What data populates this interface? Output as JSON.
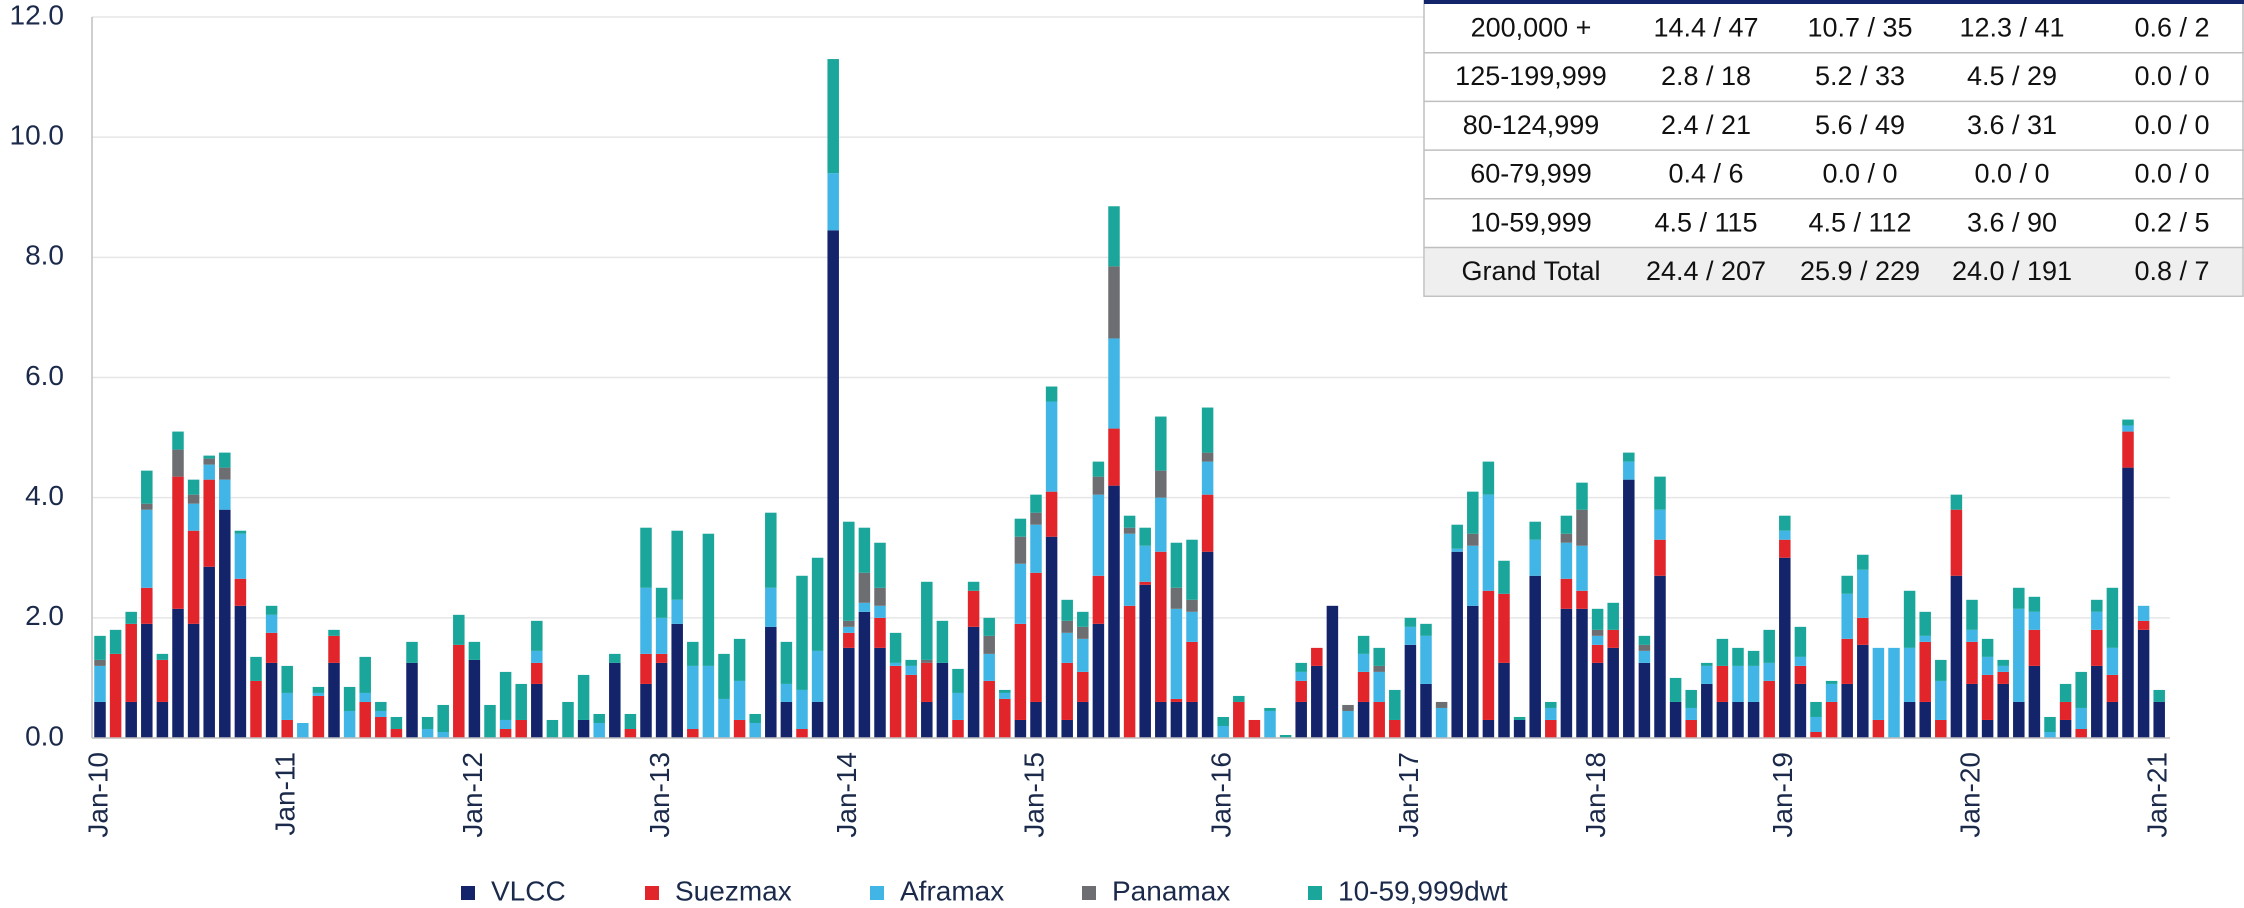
{
  "chart_data": {
    "type": "stacked_bar",
    "categories": [
      "Jan-10",
      null,
      null,
      null,
      null,
      null,
      null,
      null,
      null,
      null,
      null,
      null,
      "Jan-11",
      null,
      null,
      null,
      null,
      null,
      null,
      null,
      null,
      null,
      null,
      null,
      "Jan-12",
      null,
      null,
      null,
      null,
      null,
      null,
      null,
      null,
      null,
      null,
      null,
      "Jan-13",
      null,
      null,
      null,
      null,
      null,
      null,
      null,
      null,
      null,
      null,
      null,
      "Jan-14",
      null,
      null,
      null,
      null,
      null,
      null,
      null,
      null,
      null,
      null,
      null,
      "Jan-15",
      null,
      null,
      null,
      null,
      null,
      null,
      null,
      null,
      null,
      null,
      null,
      "Jan-16",
      null,
      null,
      null,
      null,
      null,
      null,
      null,
      null,
      null,
      null,
      null,
      "Jan-17",
      null,
      null,
      null,
      null,
      null,
      null,
      null,
      null,
      null,
      null,
      null,
      "Jan-18",
      null,
      null,
      null,
      null,
      null,
      null,
      null,
      null,
      null,
      null,
      null,
      "Jan-19",
      null,
      null,
      null,
      null,
      null,
      null,
      null,
      null,
      null,
      null,
      null,
      "Jan-20",
      null,
      null,
      null,
      null,
      null,
      null,
      null,
      null,
      null,
      null,
      null,
      "Jan-21"
    ],
    "series": [
      {
        "name": "VLCC",
        "color": "#14246b",
        "values": [
          0.6,
          0,
          0.6,
          1.9,
          0.6,
          2.15,
          1.9,
          2.85,
          3.8,
          2.2,
          0,
          1.25,
          0,
          0,
          0,
          1.25,
          0,
          0,
          0,
          0,
          1.25,
          0,
          0,
          0,
          1.3,
          0,
          0,
          0,
          0.9,
          0,
          0,
          0.3,
          0,
          1.25,
          0,
          0.9,
          1.25,
          1.9,
          0,
          0,
          0,
          0,
          0,
          1.85,
          0.6,
          0,
          0.6,
          8.45,
          1.5,
          2.1,
          1.5,
          0,
          0,
          0.6,
          1.25,
          0,
          1.85,
          0,
          0,
          0.3,
          0.6,
          3.35,
          0.3,
          0.6,
          1.9,
          4.2,
          0,
          2.55,
          0.6,
          0.6,
          0.6,
          3.1,
          0,
          0,
          0,
          0,
          0,
          0.6,
          1.2,
          2.2,
          0,
          0.6,
          0,
          0,
          1.55,
          0.9,
          0,
          3.1,
          2.2,
          0.3,
          1.25,
          0.3,
          2.7,
          0,
          2.15,
          2.15,
          1.25,
          1.5,
          4.3,
          1.25,
          2.7,
          0.6,
          0,
          0.9,
          0.6,
          0.6,
          0.6,
          0,
          3.0,
          0.9,
          0,
          0,
          0.9,
          1.55,
          0,
          0,
          0.6,
          0.6,
          0,
          2.7,
          0.9,
          0.3,
          0.9,
          0.6,
          1.2,
          0,
          0.3,
          0,
          1.2,
          0.6,
          4.5,
          1.8,
          0.6
        ]
      },
      {
        "name": "Suezmax",
        "color": "#e2252b",
        "values": [
          0,
          1.4,
          1.3,
          0.6,
          0.7,
          2.2,
          1.55,
          1.45,
          0,
          0.45,
          0.95,
          0.5,
          0.3,
          0,
          0.7,
          0.45,
          0,
          0.6,
          0.35,
          0.15,
          0,
          0,
          0,
          1.55,
          0,
          0,
          0.15,
          0.3,
          0.35,
          0,
          0,
          0,
          0,
          0,
          0.15,
          0.5,
          0.15,
          0,
          0.15,
          0,
          0,
          0.3,
          0,
          0,
          0,
          0.15,
          0,
          0,
          0.25,
          0,
          0.5,
          1.2,
          1.05,
          0.65,
          0,
          0.3,
          0.6,
          0.95,
          0.65,
          1.6,
          2.15,
          0.75,
          0.95,
          0.5,
          0.8,
          0.95,
          2.2,
          0.05,
          2.5,
          0.05,
          1.0,
          0.95,
          0,
          0.6,
          0.3,
          0,
          0,
          0.35,
          0.3,
          0,
          0,
          0.5,
          0.6,
          0.3,
          0,
          0,
          0,
          0,
          0,
          2.15,
          1.15,
          0,
          0,
          0.3,
          0.5,
          0.3,
          0.3,
          0.3,
          0,
          0,
          0.6,
          0,
          0.3,
          0,
          0.6,
          0,
          0,
          0.95,
          0.3,
          0.3,
          0.1,
          0.6,
          0.75,
          0.45,
          0.3,
          0,
          0,
          1.0,
          0.3,
          1.1,
          0.7,
          0.75,
          0.2,
          0,
          0.6,
          0,
          0.3,
          0.15,
          0.6,
          0.45,
          0.6,
          0.15,
          0
        ]
      },
      {
        "name": "Aframax",
        "color": "#41b6e6",
        "values": [
          0.6,
          0,
          0,
          1.3,
          0,
          0,
          0.45,
          0.25,
          0.5,
          0.75,
          0,
          0.3,
          0.45,
          0.25,
          0.05,
          0,
          0.45,
          0.15,
          0.1,
          0,
          0,
          0.15,
          0.1,
          0,
          0,
          0,
          0.15,
          0,
          0.2,
          0,
          0,
          0,
          0.25,
          0,
          0,
          1.1,
          0.6,
          0.4,
          1.05,
          1.2,
          0.65,
          0.65,
          0.25,
          0.65,
          0.3,
          0.65,
          0.85,
          0.95,
          0.1,
          0.15,
          0.2,
          0.05,
          0.15,
          0,
          0,
          0.45,
          0,
          0.45,
          0.1,
          1.0,
          0.8,
          1.5,
          0.5,
          0.55,
          1.35,
          1.5,
          1.2,
          0.6,
          0.9,
          1.5,
          0.5,
          0.55,
          0.2,
          0,
          0,
          0.45,
          0,
          0.15,
          0,
          0,
          0.45,
          0.3,
          0.5,
          0,
          0.3,
          0.8,
          0.5,
          0.05,
          1.0,
          1.6,
          0,
          0,
          0.6,
          0.2,
          0.6,
          0.75,
          0.15,
          0,
          0.3,
          0.2,
          0.5,
          0,
          0.2,
          0.3,
          0,
          0.6,
          0.6,
          0.3,
          0.15,
          0.15,
          0.25,
          0.3,
          0.75,
          0.8,
          1.2,
          1.5,
          0.9,
          0.1,
          0.65,
          0,
          0.2,
          0.3,
          0.1,
          1.55,
          0.3,
          0.1,
          0,
          0.35,
          0.3,
          0.45,
          0.1,
          0.25,
          0
        ]
      },
      {
        "name": "Panamax",
        "color": "#6d6e71",
        "values": [
          0.1,
          0,
          0,
          0.1,
          0,
          0.45,
          0.15,
          0.1,
          0.2,
          0,
          0,
          0,
          0,
          0,
          0,
          0,
          0,
          0,
          0,
          0,
          0,
          0,
          0,
          0,
          0,
          0,
          0,
          0,
          0,
          0,
          0,
          0,
          0,
          0,
          0,
          0,
          0,
          0,
          0,
          0,
          0,
          0,
          0,
          0,
          0,
          0,
          0,
          0,
          0.1,
          0.5,
          0.3,
          0,
          0,
          0.05,
          0,
          0,
          0,
          0.3,
          0,
          0.45,
          0.2,
          0,
          0.2,
          0.2,
          0.3,
          1.2,
          0.1,
          0,
          0.45,
          0.35,
          0.2,
          0.15,
          0,
          0,
          0,
          0,
          0,
          0,
          0,
          0,
          0.1,
          0,
          0.1,
          0,
          0,
          0,
          0.1,
          0,
          0.2,
          0,
          0,
          0,
          0,
          0,
          0.15,
          0.6,
          0.1,
          0,
          0,
          0.1,
          0,
          0,
          0,
          0,
          0,
          0,
          0,
          0,
          0,
          0,
          0,
          0,
          0,
          0,
          0,
          0,
          0,
          0,
          0,
          0,
          0,
          0,
          0,
          0,
          0,
          0,
          0,
          0,
          0,
          0,
          0,
          0,
          0
        ]
      },
      {
        "name": "10-59,999dwt",
        "color": "#1aa69b",
        "values": [
          0.4,
          0.4,
          0.2,
          0.55,
          0.1,
          0.3,
          0.25,
          0.05,
          0.25,
          0.05,
          0.4,
          0.15,
          0.45,
          0,
          0.1,
          0.1,
          0.4,
          0.6,
          0.15,
          0.2,
          0.35,
          0.2,
          0.45,
          0.5,
          0.3,
          0.55,
          0.8,
          0.6,
          0.5,
          0.3,
          0.6,
          0.75,
          0.15,
          0.15,
          0.25,
          1.0,
          0.5,
          1.15,
          0.4,
          2.2,
          0.75,
          0.7,
          0.15,
          1.25,
          0.7,
          1.9,
          1.55,
          1.9,
          1.65,
          0.75,
          0.75,
          0.5,
          0.1,
          1.3,
          0.7,
          0.4,
          0.15,
          0.3,
          0.05,
          0.3,
          0.3,
          0.25,
          0.35,
          0.25,
          0.25,
          1.0,
          0.2,
          0.3,
          0.9,
          0.75,
          1.0,
          0.75,
          0.15,
          0.1,
          0,
          0.05,
          0.05,
          0.15,
          0,
          0,
          0,
          0.3,
          0.3,
          0.5,
          0.15,
          0.2,
          0,
          0.4,
          0.7,
          0.55,
          0.55,
          0.05,
          0.3,
          0.1,
          0.3,
          0.45,
          0.35,
          0.45,
          0.15,
          0.15,
          0.55,
          0.4,
          0.3,
          0.05,
          0.45,
          0.3,
          0.25,
          0.55,
          0.25,
          0.5,
          0.25,
          0.05,
          0.3,
          0.25,
          0,
          0,
          0.95,
          0.4,
          0.35,
          0.25,
          0.5,
          0.3,
          0.1,
          0.35,
          0.25,
          0.25,
          0.3,
          0.6,
          0.2,
          1.0,
          0.1,
          0,
          0.2
        ]
      }
    ],
    "ylim": [
      0,
      12
    ],
    "yticks": [
      {
        "value": 0,
        "label": "0.0"
      },
      {
        "value": 2,
        "label": "2.0"
      },
      {
        "value": 4,
        "label": "4.0"
      },
      {
        "value": 6,
        "label": "6.0"
      },
      {
        "value": 8,
        "label": "8.0"
      },
      {
        "value": 10,
        "label": "10.0"
      },
      {
        "value": 12,
        "label": "12.0"
      }
    ],
    "grid": true,
    "legend": "bottom"
  },
  "table": {
    "rows": [
      [
        "200,000 +",
        "14.4 / 47",
        "10.7 / 35",
        "12.3 / 41",
        "0.6 / 2"
      ],
      [
        "125-199,999",
        "2.8 / 18",
        "5.2 / 33",
        "4.5 / 29",
        "0.0 / 0"
      ],
      [
        "80-124,999",
        "2.4 / 21",
        "5.6 / 49",
        "3.6 / 31",
        "0.0 / 0"
      ],
      [
        "60-79,999",
        "0.4 / 6",
        "0.0 / 0",
        "0.0 / 0",
        "0.0 / 0"
      ],
      [
        "10-59,999",
        "4.5 / 115",
        "4.5 / 112",
        "3.6 / 90",
        "0.2 / 5"
      ],
      [
        "Grand Total",
        "24.4 / 207",
        "25.9 / 229",
        "24.0 / 191",
        "0.8 / 7"
      ]
    ]
  }
}
